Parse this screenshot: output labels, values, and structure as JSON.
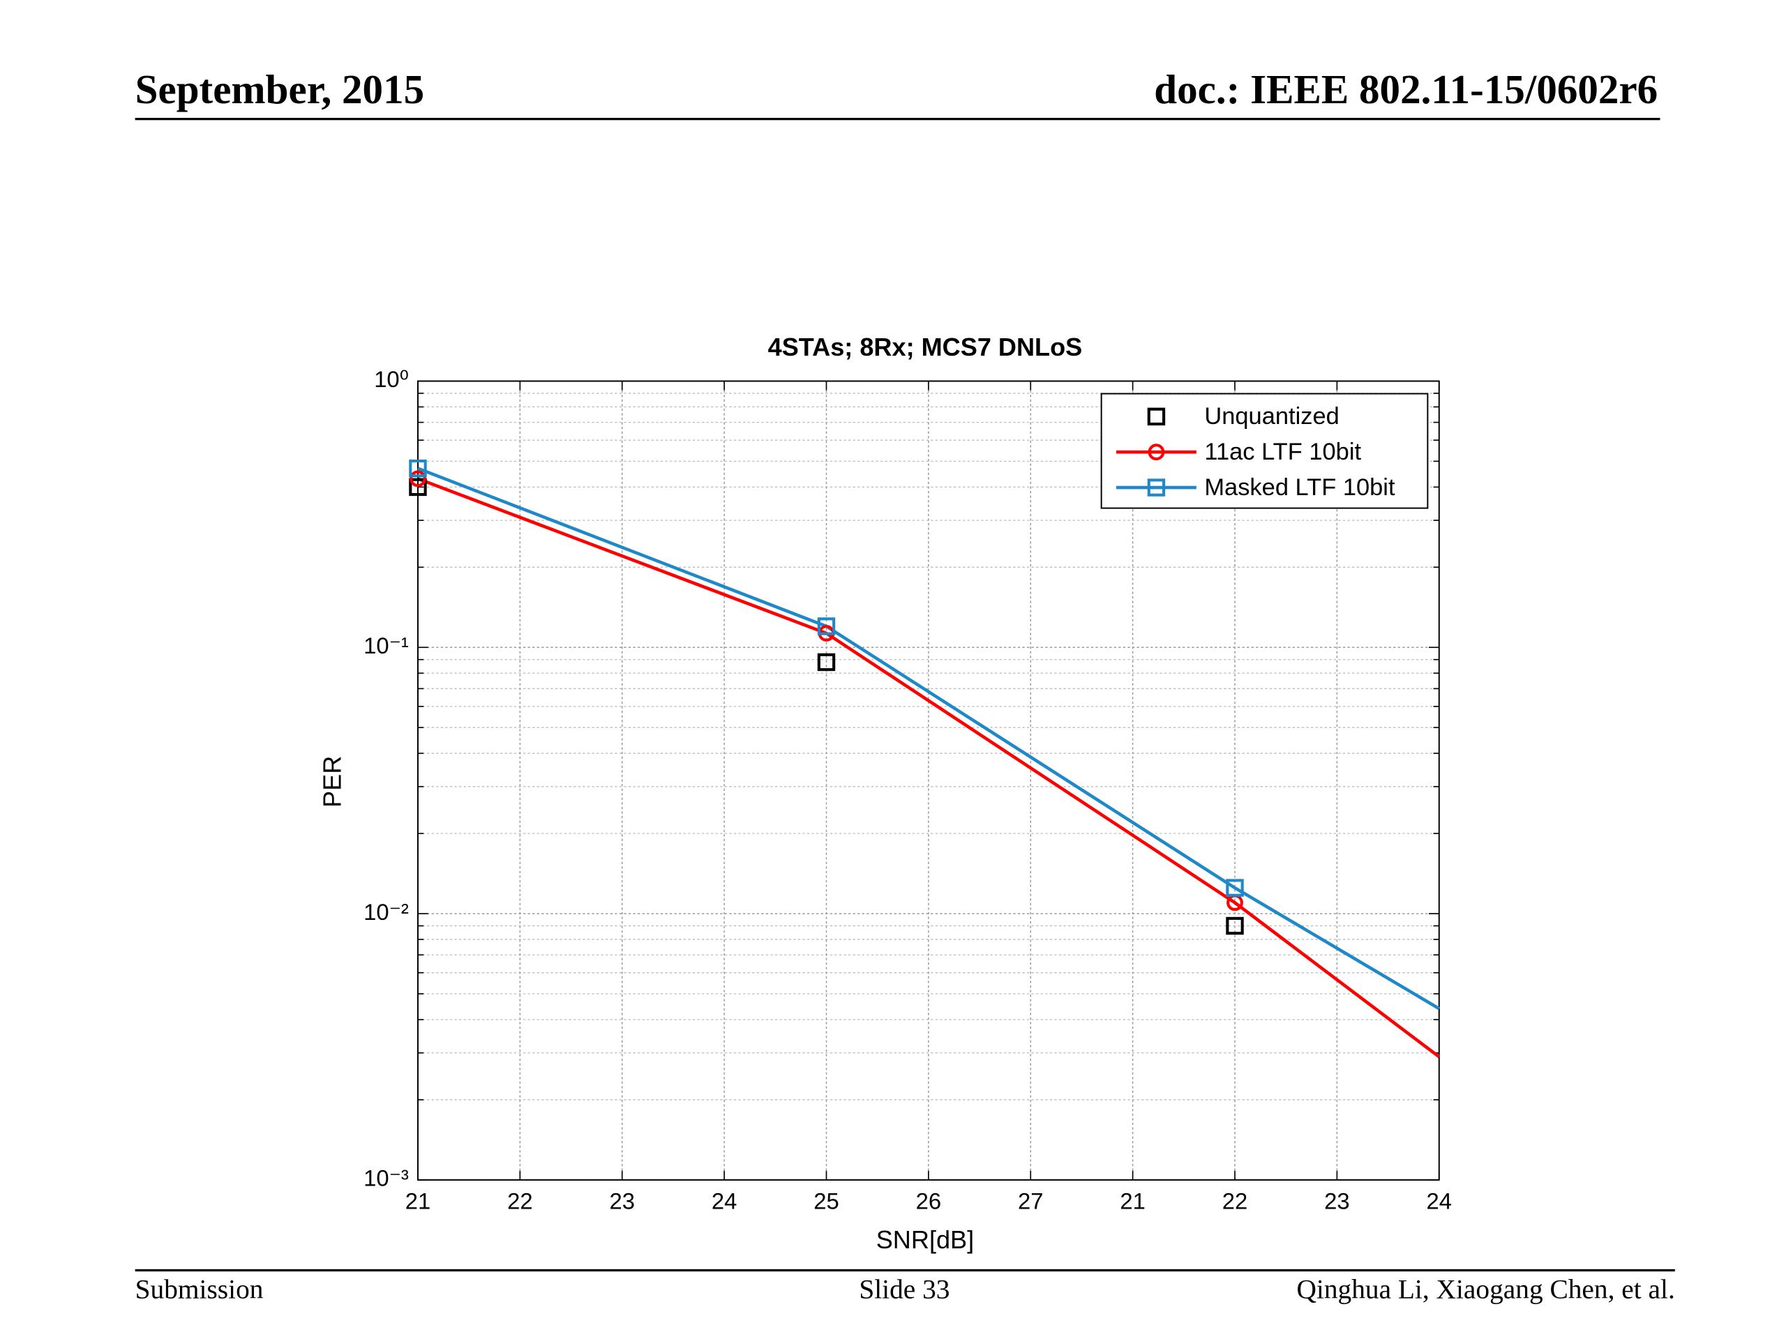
{
  "header": {
    "date": "September, 2015",
    "doc": "doc.: IEEE 802.11-15/0602r6"
  },
  "footer": {
    "left": "Submission",
    "center": "Slide 33",
    "right": "Qinghua Li, Xiaogang Chen, et al."
  },
  "chart_data": {
    "type": "line",
    "title": "4STAs; 8Rx; MCS7 DNLoS",
    "x_label": "SNR[dB]",
    "y_label": "PER",
    "x": [
      0,
      4,
      8,
      10
    ],
    "xlim": [
      0,
      10
    ],
    "xticks": [
      {
        "value": 0,
        "label": "21"
      },
      {
        "value": 1,
        "label": "22"
      },
      {
        "value": 2,
        "label": "23"
      },
      {
        "value": 3,
        "label": "24"
      },
      {
        "value": 4,
        "label": "25"
      },
      {
        "value": 5,
        "label": "26"
      },
      {
        "value": 6,
        "label": "27"
      },
      {
        "value": 7,
        "label": "21"
      },
      {
        "value": 8,
        "label": "22"
      },
      {
        "value": 9,
        "label": "23"
      },
      {
        "value": 10,
        "label": "24"
      }
    ],
    "ylim": [
      0.001,
      1
    ],
    "log_y": true,
    "grid": true,
    "legend": "upper right",
    "yticks": [
      {
        "value": 1,
        "label": "10⁰"
      },
      {
        "value": 0.1,
        "label": "10⁻¹"
      },
      {
        "value": 0.01,
        "label": "10⁻²"
      },
      {
        "value": 0.001,
        "label": "10⁻³"
      }
    ],
    "series": [
      {
        "name": "Unquantized",
        "color": "#000000",
        "marker": "square",
        "line": false,
        "values": [
          0.4,
          0.088,
          0.009,
          null
        ]
      },
      {
        "name": "11ac LTF 10bit",
        "color": "#ff0000",
        "marker": "circle",
        "line": true,
        "values": [
          0.43,
          0.113,
          0.011,
          0.0029
        ]
      },
      {
        "name": "Masked LTF 10bit",
        "color": "#1e88c8",
        "marker": "square",
        "line": true,
        "values": [
          0.47,
          0.12,
          0.0125,
          0.0044
        ]
      }
    ]
  }
}
